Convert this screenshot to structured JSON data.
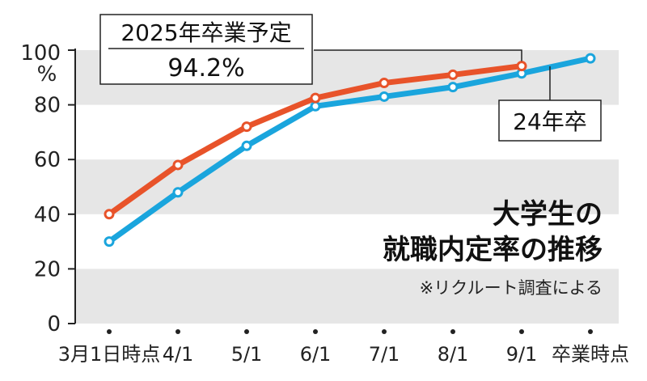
{
  "chart_data": {
    "type": "line",
    "title_lines": [
      "大学生の",
      "就職内定率の推移"
    ],
    "note": "※リクルート調査による",
    "y_unit": "%",
    "ylim": [
      0,
      100
    ],
    "yticks": [
      0,
      20,
      40,
      60,
      80,
      100
    ],
    "categories": [
      "3月1日時点",
      "4/1",
      "5/1",
      "6/1",
      "7/1",
      "8/1",
      "9/1",
      "卒業時点"
    ],
    "series": [
      {
        "name": "2025年卒業予定",
        "color": "#e8532a",
        "values": [
          40,
          58,
          72,
          82.5,
          88,
          91,
          94.2,
          null
        ]
      },
      {
        "name": "24年卒",
        "color": "#1aa5dd",
        "values": [
          30,
          48,
          65,
          79.5,
          83,
          86.5,
          91.5,
          97
        ]
      }
    ],
    "callouts": [
      {
        "series": "2025年卒業予定",
        "label": "2025年卒業予定",
        "value": "94.2%"
      },
      {
        "series": "24年卒",
        "label": "24年卒"
      }
    ],
    "grid_bands": true
  }
}
